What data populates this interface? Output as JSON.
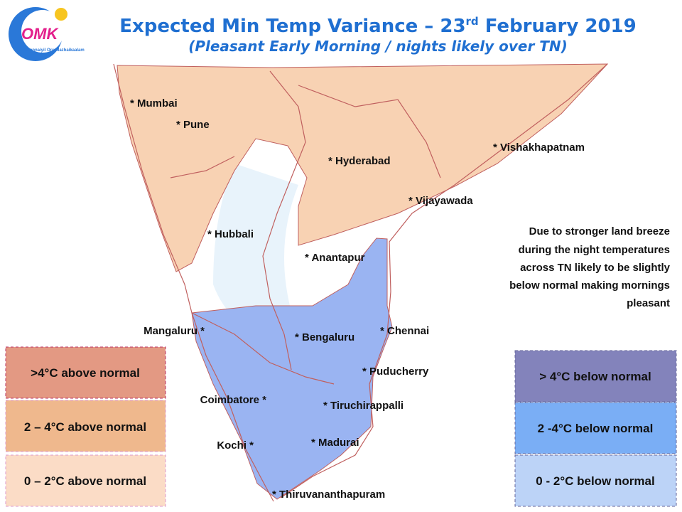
{
  "logo": {
    "text": "OMK",
    "tagline": "Chennaiyil Oru Mazhaikaalam"
  },
  "header": {
    "title_start": "Expected Min Temp Variance – 23",
    "title_sup": "rd",
    "title_end": " February 2019",
    "subtitle": "(Pleasant Early Morning / nights likely over TN)"
  },
  "cities": [
    "* Mumbai",
    "* Pune",
    "* Hyderabad",
    "* Vishakhapatnam",
    "* Vijayawada",
    "* Hubbali",
    "* Anantapur",
    "Mangaluru *",
    "* Bengaluru",
    "* Chennai",
    "* Puducherry",
    "Coimbatore *",
    "* Tiruchirappalli",
    "Kochi *",
    "* Madurai",
    "* Thiruvananthapuram"
  ],
  "note": [
    "Due to stronger land breeze",
    "during the night temperatures",
    "across TN likely to be slightly",
    "below normal making mornings",
    "pleasant"
  ],
  "legend_above": [
    ">4°C above normal",
    "2 – 4°C above normal",
    "0 – 2°C above normal"
  ],
  "legend_below": [
    "> 4°C  below normal",
    "2 -4°C below normal",
    "0 - 2°C below normal"
  ]
}
